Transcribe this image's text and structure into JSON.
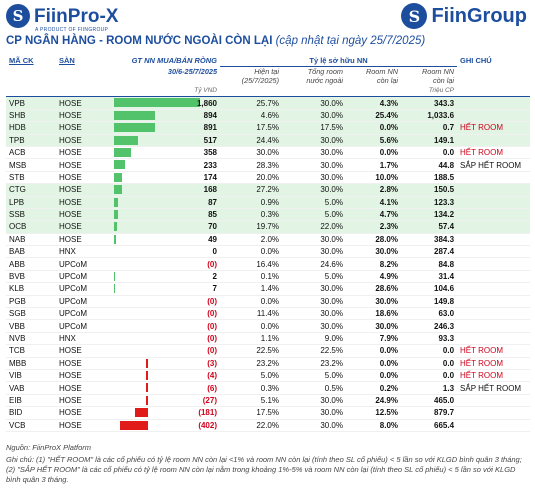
{
  "logos": {
    "left_name": "FiinPro-X",
    "left_tagline": "A PRODUCT OF FIINGROUP",
    "right_name": "FiinGroup"
  },
  "title": {
    "main": "CP NGÂN HÀNG - ROOM NƯỚC NGOÀI CÒN LẠI",
    "note": "(cập nhật tại ngày 25/7/2025)"
  },
  "headers": {
    "ticker": "MÃ CK",
    "exchange": "SÀN",
    "net_buy": "GT NN MUA/BÁN RÒNG",
    "net_buy_period": "30/6-25/7/2025",
    "ownership_group": "Tỷ lệ sở hữu NN",
    "current": "Hiện tại",
    "current_sub": "(25/7/2025)",
    "total_room": "Tổng room",
    "total_room_sub": "nước ngoài",
    "room_left": "Room NN",
    "room_left_sub": "còn lại",
    "room_left_shares": "Room NN",
    "room_left_shares_sub": "còn lại",
    "note": "GHI CHÚ",
    "unit_vnd": "Tỷ VND",
    "unit_shares": "Triệu CP"
  },
  "chart_data": {
    "type": "table",
    "columns": [
      "MÃ CK",
      "SÀN",
      "GT NN MUA/BÁN RÒNG",
      "Hiện tại",
      "Tổng room",
      "Room NN còn lại",
      "Room NN còn lại (Triệu CP)",
      "GHI CHÚ"
    ],
    "rows": [
      {
        "ticker": "VPB",
        "exchange": "HOSE",
        "net": 1860,
        "net_label": "1,860",
        "current": "25.7%",
        "total": "30.0%",
        "left": "4.3%",
        "left_shares": "343.3",
        "note": "",
        "hl": true
      },
      {
        "ticker": "SHB",
        "exchange": "HOSE",
        "net": 894,
        "net_label": "894",
        "current": "4.6%",
        "total": "30.0%",
        "left": "25.4%",
        "left_shares": "1,033.6",
        "note": "",
        "hl": true
      },
      {
        "ticker": "HDB",
        "exchange": "HOSE",
        "net": 891,
        "net_label": "891",
        "current": "17.5%",
        "total": "17.5%",
        "left": "0.0%",
        "left_shares": "0.7",
        "note": "HẾT ROOM",
        "hl": true
      },
      {
        "ticker": "TPB",
        "exchange": "HOSE",
        "net": 517,
        "net_label": "517",
        "current": "24.4%",
        "total": "30.0%",
        "left": "5.6%",
        "left_shares": "149.1",
        "note": "",
        "hl": true
      },
      {
        "ticker": "ACB",
        "exchange": "HOSE",
        "net": 358,
        "net_label": "358",
        "current": "30.0%",
        "total": "30.0%",
        "left": "0.0%",
        "left_shares": "0.0",
        "note": "HẾT ROOM",
        "hl": false
      },
      {
        "ticker": "MSB",
        "exchange": "HOSE",
        "net": 233,
        "net_label": "233",
        "current": "28.3%",
        "total": "30.0%",
        "left": "1.7%",
        "left_shares": "44.8",
        "note": "SẮP HẾT ROOM",
        "hl": false
      },
      {
        "ticker": "STB",
        "exchange": "HOSE",
        "net": 174,
        "net_label": "174",
        "current": "20.0%",
        "total": "30.0%",
        "left": "10.0%",
        "left_shares": "188.5",
        "note": "",
        "hl": false
      },
      {
        "ticker": "CTG",
        "exchange": "HOSE",
        "net": 168,
        "net_label": "168",
        "current": "27.2%",
        "total": "30.0%",
        "left": "2.8%",
        "left_shares": "150.5",
        "note": "",
        "hl": true
      },
      {
        "ticker": "LPB",
        "exchange": "HOSE",
        "net": 87,
        "net_label": "87",
        "current": "0.9%",
        "total": "5.0%",
        "left": "4.1%",
        "left_shares": "123.3",
        "note": "",
        "hl": true
      },
      {
        "ticker": "SSB",
        "exchange": "HOSE",
        "net": 85,
        "net_label": "85",
        "current": "0.3%",
        "total": "5.0%",
        "left": "4.7%",
        "left_shares": "134.2",
        "note": "",
        "hl": true
      },
      {
        "ticker": "OCB",
        "exchange": "HOSE",
        "net": 70,
        "net_label": "70",
        "current": "19.7%",
        "total": "22.0%",
        "left": "2.3%",
        "left_shares": "57.4",
        "note": "",
        "hl": true
      },
      {
        "ticker": "NAB",
        "exchange": "HOSE",
        "net": 49,
        "net_label": "49",
        "current": "2.0%",
        "total": "30.0%",
        "left": "28.0%",
        "left_shares": "384.3",
        "note": "",
        "hl": false
      },
      {
        "ticker": "BAB",
        "exchange": "HNX",
        "net": 0,
        "net_label": "0",
        "current": "0.0%",
        "total": "30.0%",
        "left": "30.0%",
        "left_shares": "287.4",
        "note": "",
        "hl": false
      },
      {
        "ticker": "ABB",
        "exchange": "UPCoM",
        "net": 0,
        "net_label": "(0)",
        "current": "16.4%",
        "total": "24.6%",
        "left": "8.2%",
        "left_shares": "84.8",
        "note": "",
        "hl": false
      },
      {
        "ticker": "BVB",
        "exchange": "UPCoM",
        "net": 2,
        "net_label": "2",
        "current": "0.1%",
        "total": "5.0%",
        "left": "4.9%",
        "left_shares": "31.4",
        "note": "",
        "hl": false
      },
      {
        "ticker": "KLB",
        "exchange": "UPCoM",
        "net": 7,
        "net_label": "7",
        "current": "1.4%",
        "total": "30.0%",
        "left": "28.6%",
        "left_shares": "104.6",
        "note": "",
        "hl": false
      },
      {
        "ticker": "PGB",
        "exchange": "UPCoM",
        "net": 0,
        "net_label": "(0)",
        "current": "0.0%",
        "total": "30.0%",
        "left": "30.0%",
        "left_shares": "149.8",
        "note": "",
        "hl": false
      },
      {
        "ticker": "SGB",
        "exchange": "UPCoM",
        "net": 0,
        "net_label": "(0)",
        "current": "11.4%",
        "total": "30.0%",
        "left": "18.6%",
        "left_shares": "63.0",
        "note": "",
        "hl": false
      },
      {
        "ticker": "VBB",
        "exchange": "UPCoM",
        "net": 0,
        "net_label": "(0)",
        "current": "0.0%",
        "total": "30.0%",
        "left": "30.0%",
        "left_shares": "246.3",
        "note": "",
        "hl": false
      },
      {
        "ticker": "NVB",
        "exchange": "HNX",
        "net": 0,
        "net_label": "(0)",
        "current": "1.1%",
        "total": "9.0%",
        "left": "7.9%",
        "left_shares": "93.3",
        "note": "",
        "hl": false
      },
      {
        "ticker": "TCB",
        "exchange": "HOSE",
        "net": 0,
        "net_label": "(0)",
        "current": "22.5%",
        "total": "22.5%",
        "left": "0.0%",
        "left_shares": "0.0",
        "note": "HẾT ROOM",
        "hl": false
      },
      {
        "ticker": "MBB",
        "exchange": "HOSE",
        "net": -3,
        "net_label": "(3)",
        "current": "23.2%",
        "total": "23.2%",
        "left": "0.0%",
        "left_shares": "0.0",
        "note": "HẾT ROOM",
        "hl": false
      },
      {
        "ticker": "VIB",
        "exchange": "HOSE",
        "net": -4,
        "net_label": "(4)",
        "current": "5.0%",
        "total": "5.0%",
        "left": "0.0%",
        "left_shares": "0.0",
        "note": "HẾT ROOM",
        "hl": false
      },
      {
        "ticker": "VAB",
        "exchange": "HOSE",
        "net": -6,
        "net_label": "(6)",
        "current": "0.3%",
        "total": "0.5%",
        "left": "0.2%",
        "left_shares": "1.3",
        "note": "SẮP HẾT ROOM",
        "hl": false
      },
      {
        "ticker": "EIB",
        "exchange": "HOSE",
        "net": -27,
        "net_label": "(27)",
        "current": "5.1%",
        "total": "30.0%",
        "left": "24.9%",
        "left_shares": "465.0",
        "note": "",
        "hl": false
      },
      {
        "ticker": "BID",
        "exchange": "HOSE",
        "net": -181,
        "net_label": "(181)",
        "current": "17.5%",
        "total": "30.0%",
        "left": "12.5%",
        "left_shares": "879.7",
        "note": "",
        "hl": false
      },
      {
        "ticker": "VCB",
        "exchange": "HOSE",
        "net": -402,
        "net_label": "(402)",
        "current": "22.0%",
        "total": "30.0%",
        "left": "8.0%",
        "left_shares": "665.4",
        "note": "",
        "hl": false
      }
    ]
  },
  "footer": {
    "source": "Nguồn: FiinProX Platform",
    "note": "Ghi chú: (1) \"HẾT ROOM\" là các cổ phiếu có tỷ lệ room NN còn lại <1% và room NN còn lại (tính theo SL cổ phiếu) < 5 lần so với KLGD bình quân 3 tháng; (2) \"SẮP HẾT ROOM\" là các cổ phiếu có tỷ lệ room NN còn lại nằm trong khoảng 1%-5% và room NN còn lại (tính theo SL cổ phiếu) < 5 lần so với KLGD bình quân 3 tháng."
  },
  "colors": {
    "brand": "#1d4e9e",
    "positive_bar": "#52c26b",
    "negative_bar": "#e11a1a",
    "highlight_row": "#e2f4e4",
    "warning_text": "#d0021b"
  }
}
